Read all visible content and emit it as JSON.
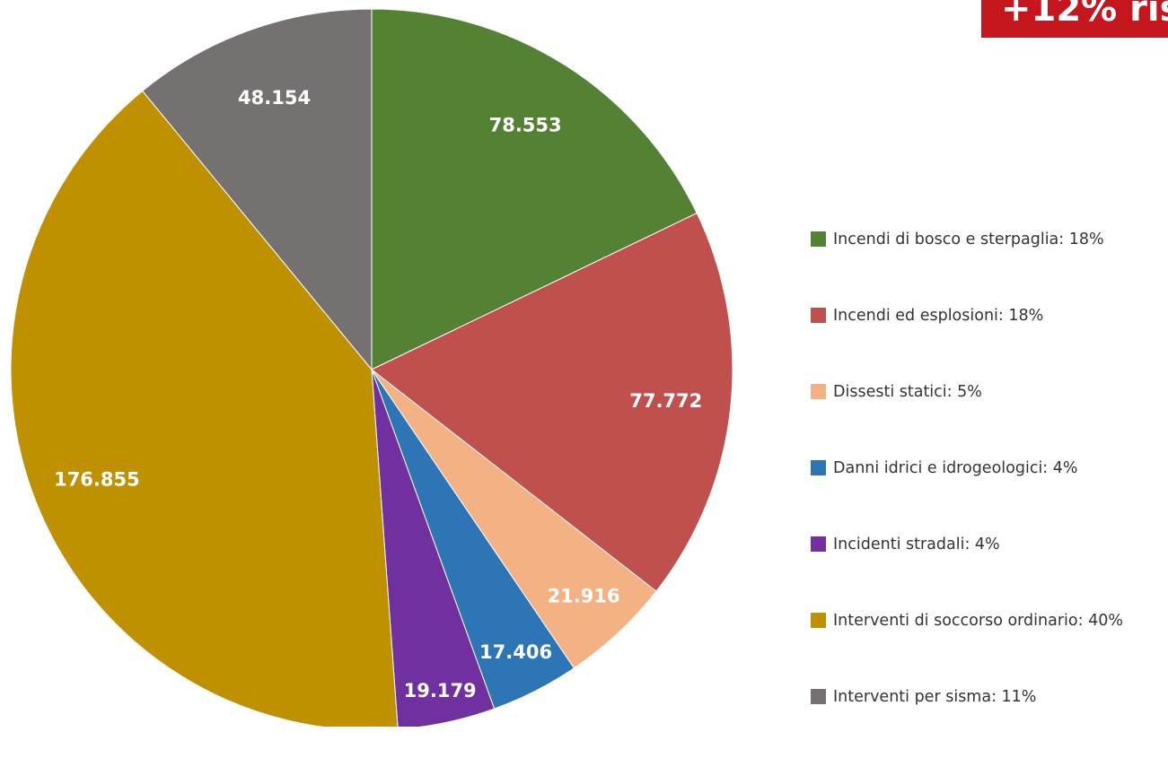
{
  "badge": {
    "text": "+12% ris",
    "color": "#c4161c"
  },
  "chart_data": {
    "type": "pie",
    "title": "",
    "start_angle_deg": 0,
    "direction": "clockwise",
    "legend_position": "right",
    "label_color": "#ffffff",
    "slices": [
      {
        "label": "Incendi di bosco e sterpaglia",
        "value": 78553,
        "value_label": "78.553",
        "percent_label": "18%",
        "color": "#548235"
      },
      {
        "label": "Incendi ed esplosioni",
        "value": 77772,
        "value_label": "77.772",
        "percent_label": "18%",
        "color": "#c0504d"
      },
      {
        "label": "Dissesti statici",
        "value": 21916,
        "value_label": "21.916",
        "percent_label": "5%",
        "color": "#f4b183"
      },
      {
        "label": "Danni idrici e idrogeologici",
        "value": 17406,
        "value_label": "17.406",
        "percent_label": "4%",
        "color": "#2e75b6"
      },
      {
        "label": "Incidenti stradali",
        "value": 19179,
        "value_label": "19.179",
        "percent_label": "4%",
        "color": "#7030a0"
      },
      {
        "label": "Interventi di soccorso ordinario",
        "value": 176855,
        "value_label": "176.855",
        "percent_label": "40%",
        "color": "#bf9000"
      },
      {
        "label": "Interventi per sisma",
        "value": 48154,
        "value_label": "48.154",
        "percent_label": "11%",
        "color": "#767171"
      }
    ]
  }
}
